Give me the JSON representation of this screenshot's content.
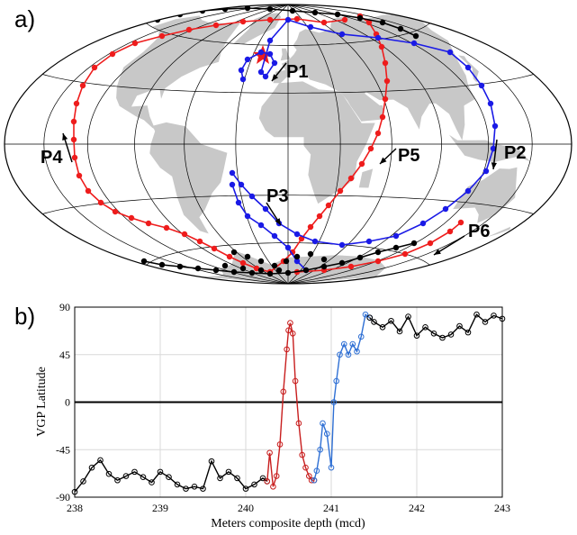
{
  "panel_a": {
    "label": "a)",
    "path_labels": [
      "P1",
      "P2",
      "P3",
      "P4",
      "P5",
      "P6"
    ],
    "colors": {
      "land": "#c8c8c8",
      "grid": "#000000",
      "red": "#ee1c1c",
      "blue": "#1a1ae6",
      "black": "#000000"
    }
  },
  "panel_b": {
    "label": "b)"
  },
  "chart_data": [
    {
      "type": "scatter",
      "panel": "a",
      "title": "",
      "projection": "Hammer-Aitoff (equal-area)",
      "series": [
        {
          "name": "",
          "color": "#ee1c1c",
          "lon": [
            -15,
            -60,
            -110,
            -140,
            -150,
            -150,
            -140,
            -120,
            -90,
            -55,
            -30,
            0,
            10,
            25,
            38,
            42,
            50,
            90,
            130,
            150
          ],
          "lat": [
            70,
            50,
            30,
            12,
            0,
            -15,
            -35,
            -50,
            -60,
            -65,
            -60,
            -65,
            -55,
            -35,
            -10,
            10,
            35,
            70,
            65,
            -30
          ]
        },
        {
          "name": "",
          "color": "#1a1ae6",
          "lon": [
            -10,
            0,
            5,
            30,
            60,
            100,
            120,
            120,
            100,
            50,
            10,
            -20,
            -30,
            -25,
            -15,
            0,
            30,
            80
          ],
          "lat": [
            60,
            65,
            80,
            80,
            70,
            40,
            10,
            -15,
            -35,
            -55,
            -60,
            -55,
            -40,
            -25,
            -45,
            -62,
            -60,
            -50
          ]
        },
        {
          "name": "",
          "color": "#000000",
          "lon": [
            -150,
            -90,
            -30,
            0,
            30,
            80,
            120,
            -120,
            -60,
            -20,
            10,
            50,
            90
          ],
          "lat": [
            82,
            84,
            85,
            86,
            84,
            82,
            80,
            -72,
            -75,
            -78,
            -76,
            -72,
            -70
          ]
        }
      ],
      "annotations": [
        "P1",
        "P2",
        "P3",
        "P4",
        "P5",
        "P6"
      ]
    },
    {
      "type": "line",
      "panel": "b",
      "title": "",
      "xlabel": "Meters composite depth (mcd)",
      "ylabel": "VGP Latitude",
      "xlim": [
        238,
        243
      ],
      "ylim": [
        -90,
        90
      ],
      "xticks": [
        238,
        239,
        240,
        241,
        242,
        243
      ],
      "yticks": [
        -90,
        -45,
        0,
        45,
        90
      ],
      "grid": true,
      "zero_line": true,
      "series": [
        {
          "name": "",
          "color": "#000000",
          "x": [
            238.0,
            238.1,
            238.2,
            238.3,
            238.4,
            238.5,
            238.6,
            238.7,
            238.8,
            238.9,
            239.0,
            239.1,
            239.2,
            239.3,
            239.4,
            239.5,
            239.6,
            239.7,
            239.8,
            239.9,
            240.0,
            240.1,
            240.2,
            240.25
          ],
          "y": [
            -85,
            -75,
            -62,
            -55,
            -68,
            -74,
            -70,
            -66,
            -71,
            -76,
            -66,
            -71,
            -78,
            -82,
            -80,
            -82,
            -56,
            -72,
            -66,
            -72,
            -82,
            -78,
            -72,
            -75
          ]
        },
        {
          "name": "",
          "color": "#c81e1e",
          "x": [
            240.25,
            240.28,
            240.32,
            240.36,
            240.4,
            240.44,
            240.48,
            240.5,
            240.52,
            240.55,
            240.58,
            240.62,
            240.66,
            240.7,
            240.74,
            240.77,
            240.8
          ],
          "y": [
            -75,
            -48,
            -80,
            -70,
            -40,
            10,
            50,
            68,
            75,
            65,
            20,
            -20,
            -50,
            -62,
            -70,
            -74,
            -74
          ]
        },
        {
          "name": "",
          "color": "#2e6fd4",
          "x": [
            240.8,
            240.83,
            240.87,
            240.9,
            240.95,
            241.0,
            241.03,
            241.06,
            241.1,
            241.15,
            241.2,
            241.25,
            241.3,
            241.35,
            241.4,
            241.45
          ],
          "y": [
            -74,
            -65,
            -45,
            -20,
            -30,
            -62,
            0,
            20,
            45,
            55,
            45,
            55,
            48,
            62,
            83,
            80
          ]
        },
        {
          "name": "",
          "color": "#000000",
          "x": [
            241.45,
            241.5,
            241.6,
            241.7,
            241.8,
            241.9,
            242.0,
            242.1,
            242.2,
            242.3,
            242.4,
            242.5,
            242.6,
            242.7,
            242.8,
            242.9,
            243.0
          ],
          "y": [
            80,
            76,
            71,
            77,
            67,
            81,
            63,
            71,
            65,
            61,
            64,
            72,
            66,
            83,
            76,
            82,
            79
          ]
        }
      ]
    }
  ]
}
